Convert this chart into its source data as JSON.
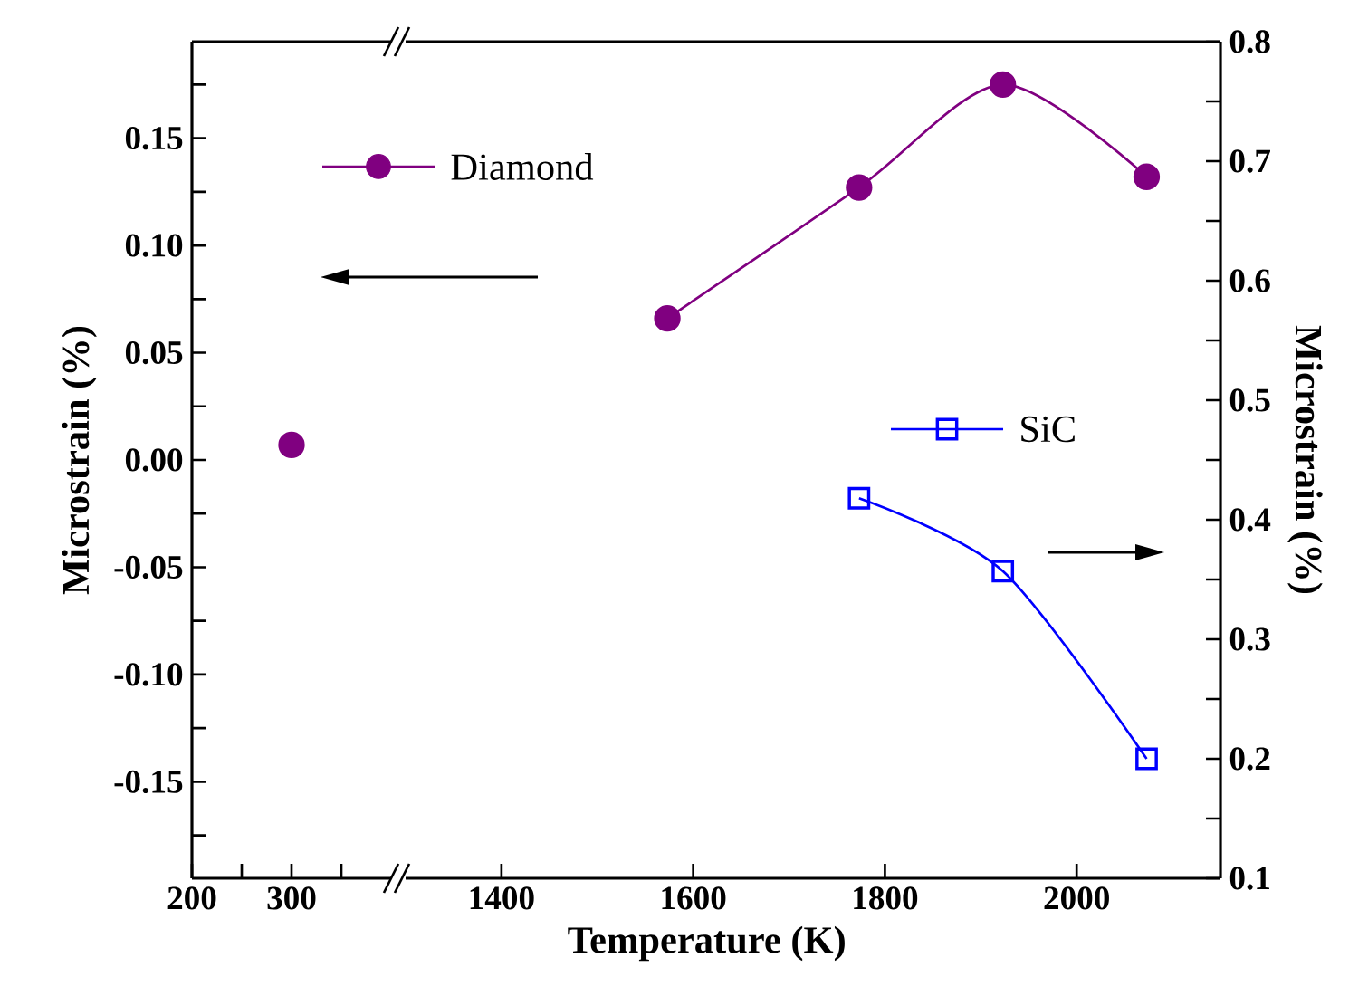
{
  "chart_data": [
    {
      "type": "line",
      "ylabel": "Microstrain (%)",
      "xlim": [
        200,
        400
      ],
      "xticks": [
        200,
        {
          "value": 250,
          "label": null
        },
        300,
        {
          "value": 350,
          "label": null
        }
      ],
      "ylim": [
        -0.195,
        0.195
      ],
      "yticks": [
        {
          "value": -0.175,
          "label": null
        },
        -0.15,
        {
          "value": -0.125,
          "label": null
        },
        {
          "value": -0.1,
          "label": "-0.10"
        },
        {
          "value": -0.075,
          "label": null
        },
        -0.05,
        {
          "value": -0.025,
          "label": null
        },
        {
          "value": 0,
          "label": "0.00"
        },
        {
          "value": 0.025,
          "label": null
        },
        0.05,
        {
          "value": 0.075,
          "label": null
        },
        {
          "value": 0.1,
          "label": "0.10"
        },
        {
          "value": 0.125,
          "label": null
        },
        0.15,
        {
          "value": 0.175,
          "label": null
        }
      ],
      "series": [
        {
          "color": "#800080",
          "marker": "circle",
          "x": [
            300
          ],
          "values": [
            0.007
          ]
        }
      ]
    },
    {
      "type": "line",
      "xlabel": "Temperature (K)",
      "y2label": "Microstrain (%)",
      "xlim": [
        1300,
        2150
      ],
      "xticks": [
        1400,
        1600,
        1800,
        2000
      ],
      "ylim": [
        -0.195,
        0.195
      ],
      "y2lim": [
        0.1,
        0.8
      ],
      "y2ticks": [
        0.1,
        {
          "value": 0.15,
          "label": null
        },
        0.2,
        {
          "value": 0.25,
          "label": null
        },
        0.3,
        {
          "value": 0.35,
          "label": null
        },
        0.4,
        {
          "value": 0.45,
          "label": null
        },
        0.5,
        {
          "value": 0.55,
          "label": null
        },
        0.6,
        {
          "value": 0.65,
          "label": null
        },
        0.7,
        {
          "value": 0.75,
          "label": null
        },
        0.8
      ],
      "legend": "top left",
      "series": [
        {
          "name": "Diamond",
          "color": "#800080",
          "marker": "circle",
          "x": [
            1573,
            1773,
            1923,
            2073
          ],
          "values": [
            0.066,
            0.127,
            0.175,
            0.132
          ]
        },
        {
          "name": "SiC",
          "color": "#0000ff",
          "marker": "square",
          "axis": "y2",
          "x": [
            1773,
            1923,
            2073
          ],
          "values": [
            0.418,
            0.357,
            0.2
          ]
        }
      ]
    }
  ]
}
